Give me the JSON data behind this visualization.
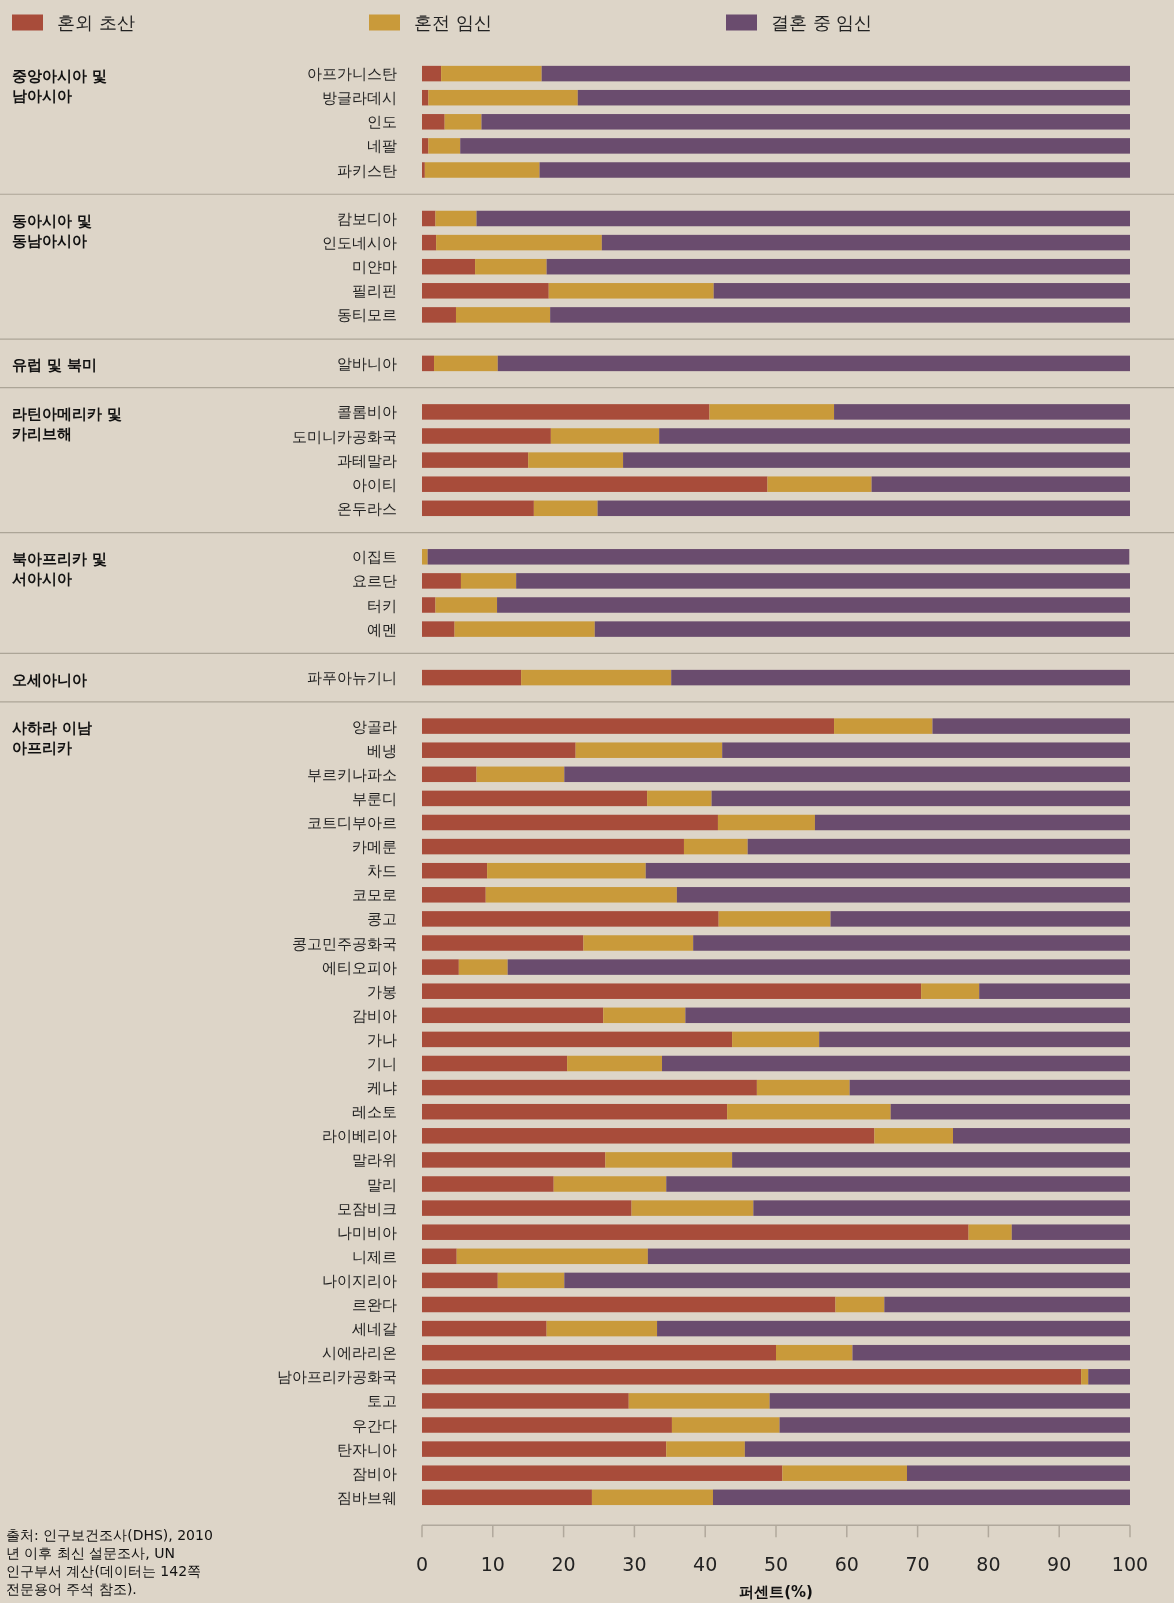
{
  "chart_data": [
    {
      "type": "bar",
      "orientation": "horizontal",
      "stacked": true,
      "ylabel": "중앙아시아 및 남아시아",
      "legend": "top",
      "tick_labels": "y",
      "xlim": [
        0,
        100
      ],
      "categories": [
        "아프가니스탄",
        "방글라데시",
        "인도",
        "네팔",
        "파키스탄"
      ],
      "series": [
        {
          "name": "혼외 초산",
          "color": "#a84c3a",
          "values": [
            2.7,
            0.9,
            3.2,
            0.9,
            0.4
          ]
        },
        {
          "name": "혼전 임신",
          "color": "#c99a3a",
          "values": [
            14.2,
            21.1,
            5.2,
            4.5,
            16.2
          ]
        },
        {
          "name": "결혼 중 임신",
          "color": "#6a4c6e",
          "values": [
            83.1,
            78.0,
            91.6,
            94.6,
            83.4
          ]
        }
      ]
    },
    {
      "type": "bar",
      "orientation": "horizontal",
      "stacked": true,
      "ylabel": "동아시아 및 동남아시아",
      "tick_labels": "y",
      "xlim": [
        0,
        100
      ],
      "categories": [
        "캄보디아",
        "인도네시아",
        "미얀마",
        "필리핀",
        "동티모르"
      ],
      "series": [
        {
          "color": "#a84c3a",
          "values": [
            1.9,
            2.0,
            7.5,
            17.9,
            4.8
          ]
        },
        {
          "color": "#c99a3a",
          "values": [
            5.8,
            23.4,
            10.1,
            23.3,
            13.3
          ]
        },
        {
          "color": "#6a4c6e",
          "values": [
            92.3,
            74.6,
            82.4,
            58.8,
            81.9
          ]
        }
      ]
    },
    {
      "type": "bar",
      "orientation": "horizontal",
      "stacked": true,
      "ylabel": "유럽 및 북미",
      "tick_labels": "y",
      "xlim": [
        0,
        100
      ],
      "categories": [
        "알바니아"
      ],
      "series": [
        {
          "color": "#a84c3a",
          "values": [
            1.7
          ]
        },
        {
          "color": "#c99a3a",
          "values": [
            9.0
          ]
        },
        {
          "color": "#6a4c6e",
          "values": [
            89.3
          ]
        }
      ]
    },
    {
      "type": "bar",
      "orientation": "horizontal",
      "stacked": true,
      "ylabel": "라틴아메리카 및 카리브해",
      "tick_labels": "y",
      "xlim": [
        0,
        100
      ],
      "categories": [
        "콜롬비아",
        "도미니카공화국",
        "과테말라",
        "아이티",
        "온두라스"
      ],
      "series": [
        {
          "color": "#a84c3a",
          "values": [
            40.6,
            18.2,
            15.0,
            48.8,
            15.8
          ]
        },
        {
          "color": "#c99a3a",
          "values": [
            17.6,
            15.3,
            13.4,
            14.7,
            9.0
          ]
        },
        {
          "color": "#6a4c6e",
          "values": [
            41.8,
            66.5,
            71.6,
            36.5,
            75.2
          ]
        }
      ]
    },
    {
      "type": "bar",
      "orientation": "horizontal",
      "stacked": true,
      "ylabel": "북아프리카 및 서아시아",
      "tick_labels": "y",
      "xlim": [
        0,
        100
      ],
      "categories": [
        "이집트",
        "요르단",
        "터키",
        "예멘"
      ],
      "series": [
        {
          "color": "#a84c3a",
          "values": [
            null,
            5.5,
            1.9,
            4.6
          ]
        },
        {
          "color": "#c99a3a",
          "values": [
            0.8,
            7.8,
            8.7,
            19.8
          ]
        },
        {
          "color": "#6a4c6e",
          "values": [
            99.1,
            86.7,
            89.4,
            75.6
          ]
        }
      ]
    },
    {
      "type": "bar",
      "orientation": "horizontal",
      "stacked": true,
      "ylabel": "오세아니아",
      "tick_labels": "y",
      "xlim": [
        0,
        100
      ],
      "categories": [
        "파푸아뉴기니"
      ],
      "series": [
        {
          "color": "#a84c3a",
          "values": [
            14.0
          ]
        },
        {
          "color": "#c99a3a",
          "values": [
            21.2
          ]
        },
        {
          "color": "#6a4c6e",
          "values": [
            64.8
          ]
        }
      ]
    },
    {
      "type": "bar",
      "orientation": "horizontal",
      "stacked": true,
      "ylabel": "사하라 이남 아프리카",
      "xlabel": "퍼센트(%)",
      "xlim": [
        0,
        100
      ],
      "xticks": [
        0,
        10,
        20,
        30,
        40,
        50,
        60,
        70,
        80,
        90,
        100
      ],
      "annotations": [
        "출처: 인구보건조사(DHS), 2010 년 이후 최신 설문조사, UN 인구부서 계산(데이터는 142쪽 전문용어 주석 참조)."
      ],
      "categories": [
        "앙골라",
        "베냉",
        "부르키나파소",
        "부룬디",
        "코트디부아르",
        "카메룬",
        "차드",
        "코모로",
        "콩고",
        "콩고민주공화국",
        "에티오피아",
        "가봉",
        "감비아",
        "가나",
        "기니",
        "케냐",
        "레소토",
        "라이베리아",
        "말라위",
        "말리",
        "모잠비크",
        "나미비아",
        "니제르",
        "나이지리아",
        "르완다",
        "세네갈",
        "시에라리온",
        "남아프리카공화국",
        "토고",
        "우간다",
        "탄자니아",
        "잠비아",
        "짐바브웨"
      ],
      "series": [
        {
          "color": "#a84c3a",
          "values": [
            58.2,
            21.7,
            7.7,
            31.8,
            41.8,
            37.0,
            9.2,
            9.0,
            41.9,
            22.8,
            5.2,
            70.5,
            25.6,
            43.8,
            20.5,
            47.3,
            43.1,
            63.9,
            25.9,
            18.6,
            29.6,
            77.2,
            4.9,
            10.7,
            58.4,
            17.6,
            50.0,
            93.1,
            29.2,
            35.3,
            34.5,
            50.9,
            24.0
          ]
        },
        {
          "color": "#c99a3a",
          "values": [
            13.9,
            20.7,
            12.4,
            9.1,
            13.7,
            9.0,
            22.4,
            27.0,
            15.8,
            15.5,
            6.9,
            8.2,
            11.6,
            12.3,
            13.4,
            13.1,
            23.1,
            11.1,
            17.9,
            15.9,
            17.2,
            6.1,
            27.0,
            9.4,
            6.9,
            15.6,
            10.8,
            1.0,
            19.9,
            15.2,
            11.1,
            17.6,
            17.1
          ]
        },
        {
          "color": "#6a4c6e",
          "values": [
            27.9,
            57.6,
            79.9,
            59.1,
            44.5,
            54.0,
            68.4,
            64.0,
            42.3,
            61.7,
            87.9,
            21.3,
            62.8,
            43.9,
            66.1,
            39.6,
            33.8,
            25.0,
            56.2,
            65.5,
            53.2,
            16.7,
            68.1,
            79.9,
            34.7,
            66.8,
            39.2,
            5.9,
            50.9,
            49.5,
            54.4,
            31.5,
            58.9
          ]
        }
      ]
    }
  ]
}
